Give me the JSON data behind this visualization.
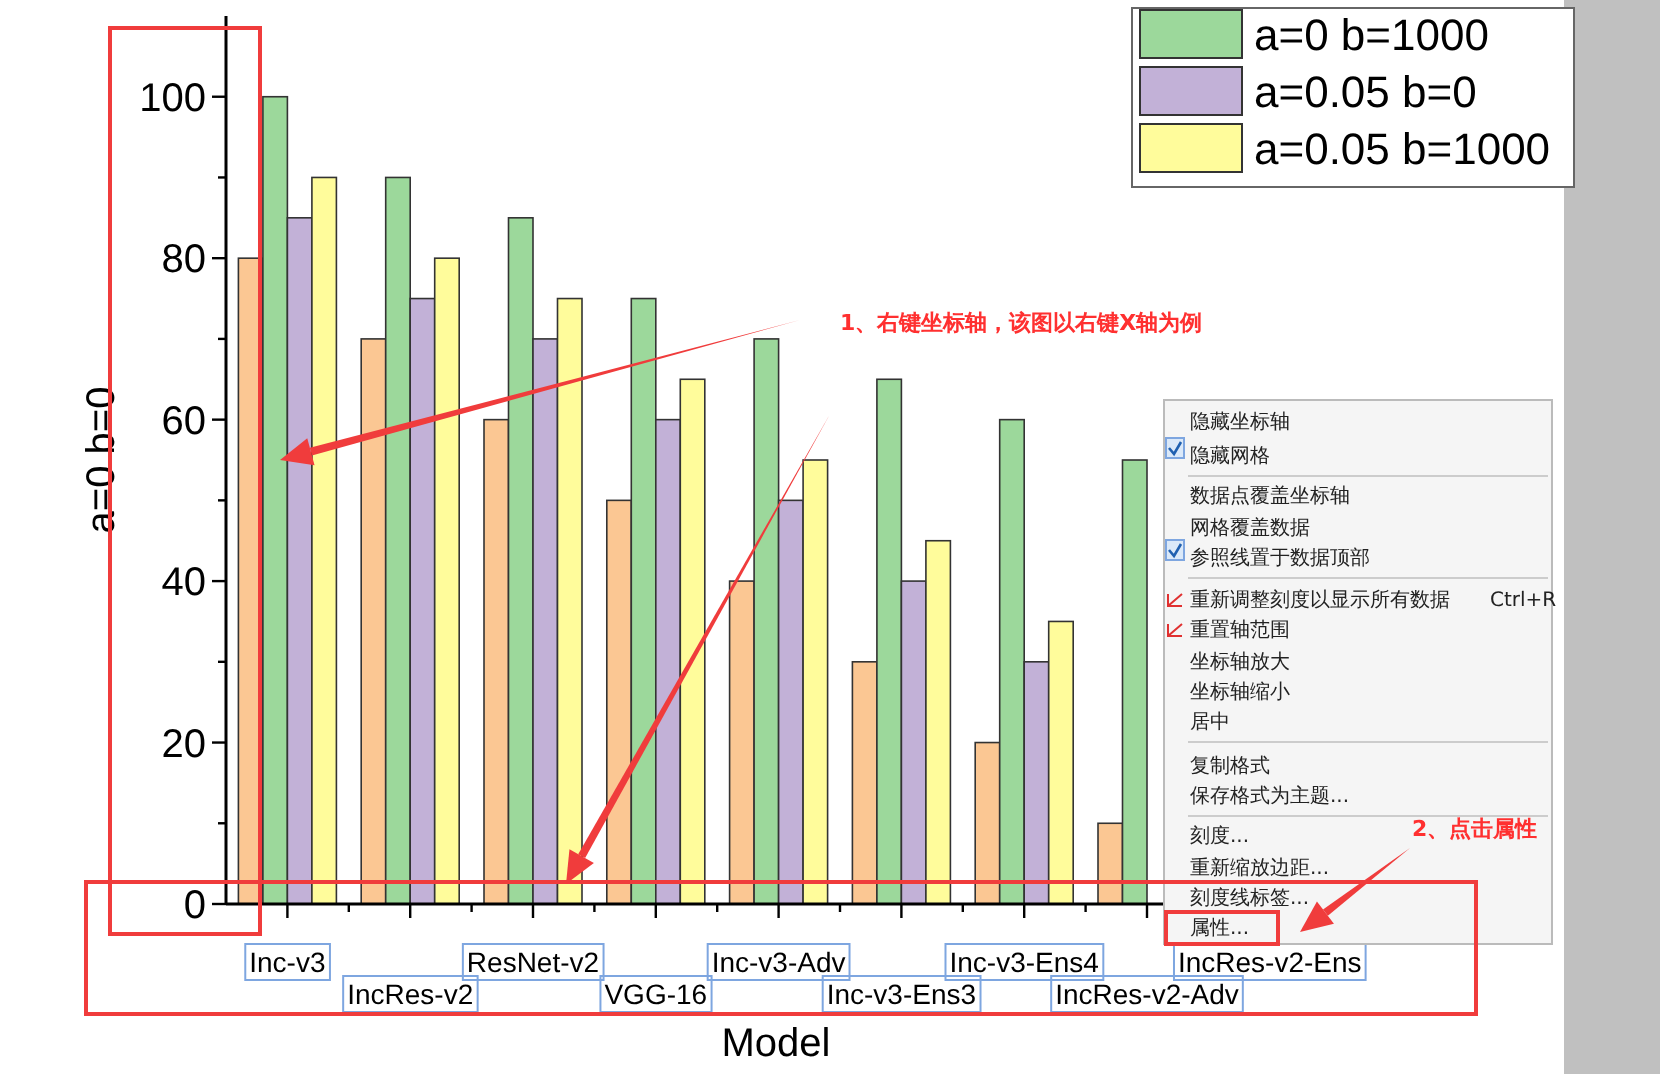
{
  "chart_data": [
    {
      "type": "bar",
      "ylabel": "a=0 b=0",
      "xlabel": "Model",
      "categories": [
        "Inc-v3",
        "IncRes-v2",
        "ResNet-v2",
        "VGG-16",
        "Inc-v3-Adv",
        "Inc-v3-Ens3",
        "Inc-v3-Ens4",
        "IncRes-v2-Adv",
        "IncRes-v2-Ens"
      ],
      "series": [
        {
          "color": "#fbc793",
          "values": [
            80,
            70,
            60,
            50,
            40,
            30,
            20,
            10,
            null
          ]
        },
        {
          "name": "a=0 b=1000",
          "color": "#9cd89b",
          "values": [
            100,
            90,
            85,
            75,
            70,
            65,
            60,
            55,
            null
          ]
        },
        {
          "name": "a=0.05 b=0",
          "color": "#c2b1d7",
          "values": [
            85,
            75,
            70,
            60,
            50,
            40,
            30,
            null,
            null
          ]
        },
        {
          "name": "a=0.05 b=1000",
          "color": "#fffc9b",
          "values": [
            90,
            80,
            75,
            65,
            55,
            45,
            35,
            null,
            null
          ]
        }
      ],
      "ylim": [
        0,
        110
      ],
      "yticks": [
        0,
        {
          "value": 10,
          "label": null
        },
        20,
        {
          "value": 30,
          "label": null
        },
        40,
        {
          "value": 50,
          "label": null
        },
        60,
        {
          "value": 70,
          "label": null
        },
        80,
        {
          "value": 90,
          "label": null
        },
        100
      ],
      "legend": "top right",
      "grid": false,
      "annotations": [
        "1、右键坐标轴，该图以右键X轴为例",
        "2、点击属性"
      ]
    },
    {
      "type": "other",
      "annotations": [
        "隐藏坐标轴",
        "隐藏网格",
        "数据点覆盖坐标轴",
        "网格覆盖数据",
        "参照线置于数据顶部",
        "重新调整刻度以显示所有数据",
        "Ctrl+R",
        "重置轴范围",
        "坐标轴放大",
        "坐标轴缩小",
        "居中",
        "复制格式",
        "保存格式为主题...",
        "刻度...",
        "重新缩放边距...",
        "刻度线标签...",
        "属性..."
      ]
    }
  ]
}
